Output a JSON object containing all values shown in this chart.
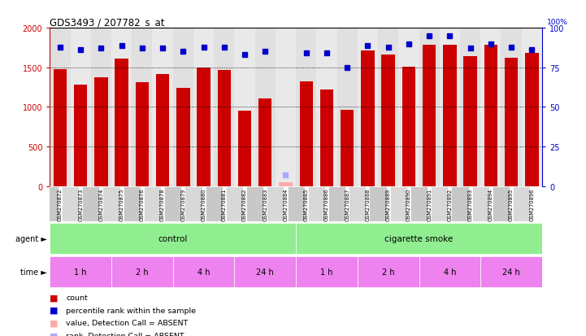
{
  "title": "GDS3493 / 207782_s_at",
  "samples": [
    "GSM270872",
    "GSM270873",
    "GSM270874",
    "GSM270875",
    "GSM270876",
    "GSM270878",
    "GSM270879",
    "GSM270880",
    "GSM270881",
    "GSM270882",
    "GSM270883",
    "GSM270884",
    "GSM270885",
    "GSM270886",
    "GSM270887",
    "GSM270888",
    "GSM270889",
    "GSM270890",
    "GSM270891",
    "GSM270892",
    "GSM270893",
    "GSM270894",
    "GSM270895",
    "GSM270896"
  ],
  "counts": [
    1480,
    1285,
    1380,
    1610,
    1315,
    1420,
    1245,
    1495,
    1465,
    955,
    1110,
    50,
    1325,
    1220,
    960,
    1710,
    1660,
    1510,
    1790,
    1790,
    1640,
    1790,
    1625,
    1685
  ],
  "percentile_ranks": [
    88,
    86,
    87,
    89,
    87,
    87,
    85,
    88,
    88,
    83,
    85,
    7,
    84,
    84,
    75,
    89,
    88,
    90,
    95,
    95,
    87,
    90,
    88,
    86
  ],
  "absent_count_indices": [
    11
  ],
  "absent_rank_indices": [
    11
  ],
  "bar_color": "#cc0000",
  "rank_color": "#0000cc",
  "absent_bar_color": "#ffaaaa",
  "absent_rank_color": "#aaaaff",
  "ylim_left": [
    0,
    2000
  ],
  "ylim_right": [
    0,
    100
  ],
  "yticks_left": [
    0,
    500,
    1000,
    1500,
    2000
  ],
  "yticks_right": [
    0,
    25,
    50,
    75,
    100
  ],
  "agent_groups": [
    {
      "label": "control",
      "start": 0,
      "end": 11
    },
    {
      "label": "cigarette smoke",
      "start": 12,
      "end": 23
    }
  ],
  "time_groups": [
    {
      "label": "1 h",
      "start": 0,
      "end": 2
    },
    {
      "label": "2 h",
      "start": 3,
      "end": 5
    },
    {
      "label": "4 h",
      "start": 6,
      "end": 8
    },
    {
      "label": "24 h",
      "start": 9,
      "end": 11
    },
    {
      "label": "1 h",
      "start": 12,
      "end": 14
    },
    {
      "label": "2 h",
      "start": 15,
      "end": 17
    },
    {
      "label": "4 h",
      "start": 18,
      "end": 20
    },
    {
      "label": "24 h",
      "start": 21,
      "end": 23
    }
  ],
  "agent_color": "#90EE90",
  "time_color": "#EE82EE",
  "col_bg_a": "#c8c8c8",
  "col_bg_b": "#d8d8d8",
  "bar_width": 0.65
}
